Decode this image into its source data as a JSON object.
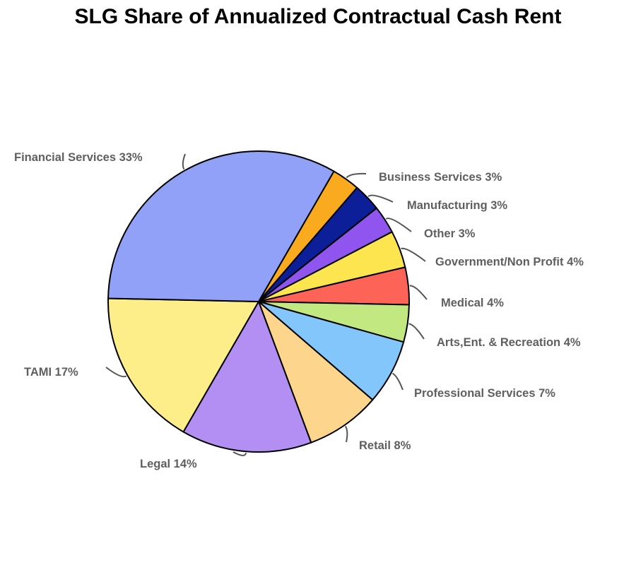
{
  "chart_data": {
    "type": "pie",
    "title": "SLG Share of Annualized Contractual Cash Rent",
    "unit": "%",
    "start_angle_deg": 30,
    "direction": "clockwise",
    "slices": [
      {
        "label": "Business Services",
        "value": 3,
        "text": "Business Services 3%",
        "color": "#f9aa1e"
      },
      {
        "label": "Manufacturing",
        "value": 3,
        "text": "Manufacturing 3%",
        "color": "#0c1f99"
      },
      {
        "label": "Other",
        "value": 3,
        "text": "Other 3%",
        "color": "#9155ef"
      },
      {
        "label": "Government/Non Profit",
        "value": 4,
        "text": "Government/Non Profit 4%",
        "color": "#fde54f"
      },
      {
        "label": "Medical",
        "value": 4,
        "text": "Medical 4%",
        "color": "#fe6358"
      },
      {
        "label": "Arts,Ent. & Recreation",
        "value": 4,
        "text": "Arts,Ent. & Recreation 4%",
        "color": "#c2e882"
      },
      {
        "label": "Professional Services",
        "value": 7,
        "text": "Professional Services 7%",
        "color": "#82c6fb"
      },
      {
        "label": "Retail",
        "value": 8,
        "text": "Retail 8%",
        "color": "#fdd58c"
      },
      {
        "label": "Legal",
        "value": 14,
        "text": "Legal 14%",
        "color": "#b38ff3"
      },
      {
        "label": "TAMI",
        "value": 17,
        "text": "TAMI 17%",
        "color": "#fdee8a"
      },
      {
        "label": "Financial Services",
        "value": 33,
        "text": "Financial Services 33%",
        "color": "#91a1f7"
      }
    ],
    "legend": "none"
  }
}
